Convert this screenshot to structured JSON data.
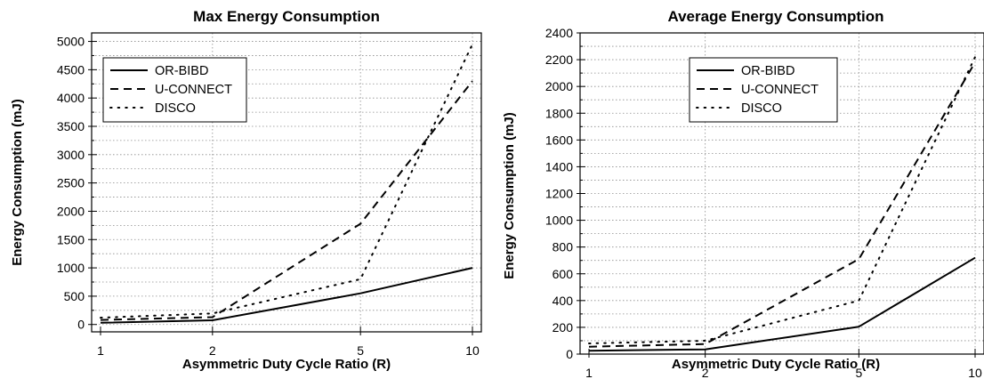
{
  "chart_data": [
    {
      "type": "line",
      "title": "Max Energy Consumption",
      "xlabel": "Asymmetric Duty Cycle Ratio (R)",
      "ylabel": "Energy Consumption (mJ)",
      "x": [
        1,
        2,
        5,
        10
      ],
      "x_scale": "log",
      "xticks": [
        "1",
        "2",
        "5",
        "10"
      ],
      "ylim": [
        -130,
        5150
      ],
      "yticks": [
        "0",
        "500",
        "1000",
        "1500",
        "2000",
        "2500",
        "3000",
        "3500",
        "4000",
        "4500",
        "5000"
      ],
      "grid": true,
      "legend_position": "top-left",
      "series": [
        {
          "name": "OR-BIBD",
          "style": "solid",
          "values": [
            30,
            75,
            550,
            1000
          ]
        },
        {
          "name": "U-CONNECT",
          "style": "dashed",
          "values": [
            80,
            130,
            1780,
            4300
          ]
        },
        {
          "name": "DISCO",
          "style": "dotted",
          "values": [
            120,
            195,
            800,
            4950
          ]
        }
      ]
    },
    {
      "type": "line",
      "title": "Average Energy Consumption",
      "xlabel": "Asymmetric Duty Cycle Ratio (R)",
      "ylabel": "Energy Consumption (mJ)",
      "x": [
        1,
        2,
        5,
        10
      ],
      "x_scale": "log",
      "xticks": [
        "1",
        "2",
        "5",
        "10"
      ],
      "ylim": [
        0,
        2400
      ],
      "yticks": [
        "0",
        "200",
        "400",
        "600",
        "800",
        "1000",
        "1200",
        "1400",
        "1600",
        "1800",
        "2000",
        "2200",
        "2400"
      ],
      "grid": true,
      "legend_position": "top-left",
      "series": [
        {
          "name": "OR-BIBD",
          "style": "solid",
          "values": [
            25,
            35,
            205,
            720
          ]
        },
        {
          "name": "U-CONNECT",
          "style": "dashed",
          "values": [
            55,
            75,
            710,
            2180
          ]
        },
        {
          "name": "DISCO",
          "style": "dotted",
          "values": [
            80,
            100,
            400,
            2220
          ]
        }
      ]
    }
  ]
}
